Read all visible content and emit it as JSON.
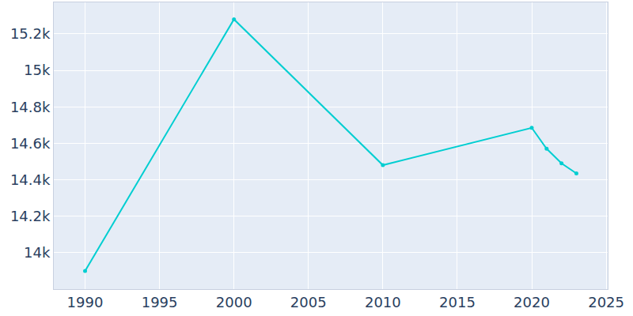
{
  "chart_data": {
    "type": "line",
    "x": [
      1990,
      2000,
      2010,
      2020,
      2021,
      2022,
      2023
    ],
    "values": [
      13900,
      15280,
      14480,
      14685,
      14570,
      14490,
      14435
    ],
    "color": "#00ced1",
    "marker": "circle",
    "xlim": [
      1987.9,
      2025.1
    ],
    "xticks": [
      1990,
      1995,
      2000,
      2005,
      2010,
      2015,
      2020,
      2025
    ],
    "ylim": [
      13800,
      15373
    ],
    "yticks": [
      {
        "value": 14000,
        "label": "14k"
      },
      {
        "value": 14200,
        "label": "14.2k"
      },
      {
        "value": 14400,
        "label": "14.4k"
      },
      {
        "value": 14600,
        "label": "14.6k"
      },
      {
        "value": 14800,
        "label": "14.8k"
      },
      {
        "value": 15000,
        "label": "15k"
      },
      {
        "value": 15200,
        "label": "15.2k"
      }
    ],
    "grid": true
  }
}
